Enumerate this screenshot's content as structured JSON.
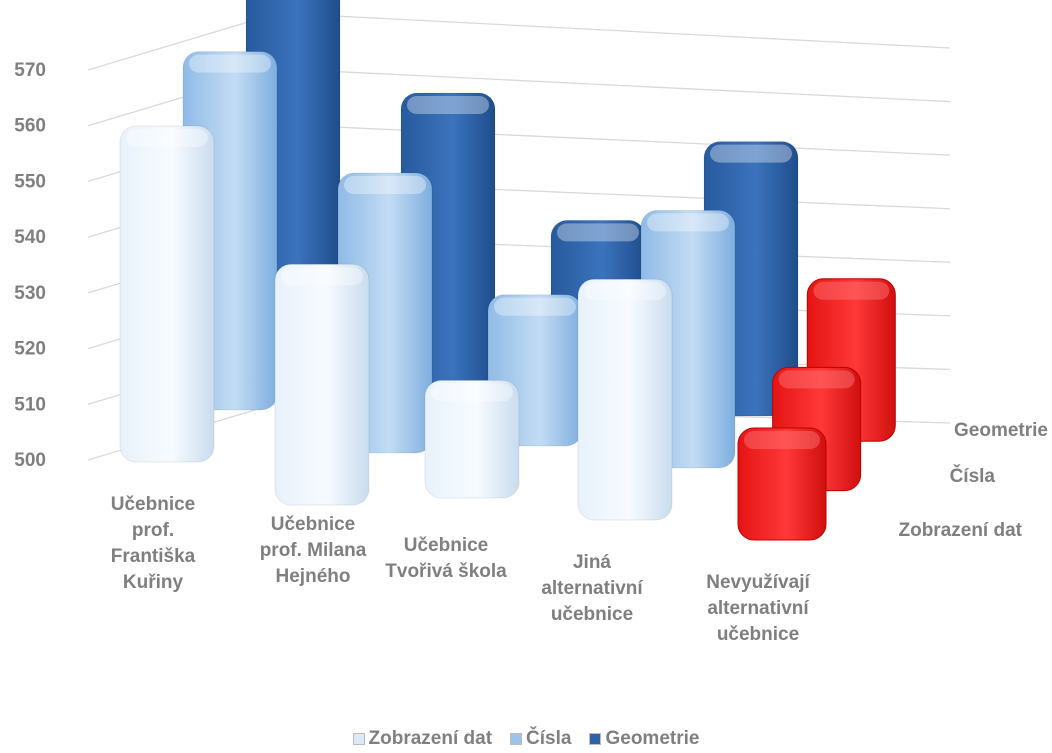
{
  "chart_data": {
    "type": "bar",
    "style": "3d-column",
    "categories": [
      "Učebnice prof. Františka Kuřiny",
      "Učebnice prof. Milana Hejného",
      "Učebnice Tvořivá škola",
      "Jiná alternativní učebnice",
      "Nevyužívají alternativní učebnice"
    ],
    "category_label_lines": [
      [
        "Učebnice",
        "prof.",
        "Františka",
        "Kuřiny"
      ],
      [
        "Učebnice",
        "prof. Milana",
        "Hejného"
      ],
      [
        "Učebnice",
        "Tvořivá škola"
      ],
      [
        "Jiná",
        "alternativní",
        "učebnice"
      ],
      [
        "Nevyužívají",
        "alternativní",
        "učebnice"
      ]
    ],
    "series": [
      {
        "name": "Zobrazení dat",
        "values": [
          560,
          543,
          521,
          543,
          520
        ],
        "color": "#dbe9f6"
      },
      {
        "name": "Čísla",
        "values": [
          564,
          550,
          527,
          546,
          522
        ],
        "color": "#9cc3ea"
      },
      {
        "name": "Geometrie",
        "values": [
          571,
          555,
          531,
          549,
          529
        ],
        "color": "#2d62a8"
      }
    ],
    "highlight_category_color": "#ee1c1c",
    "ylim": [
      500,
      570
    ],
    "yticks": [
      500,
      510,
      520,
      530,
      540,
      550,
      560,
      570
    ],
    "grid": true,
    "legend": "bottom"
  }
}
